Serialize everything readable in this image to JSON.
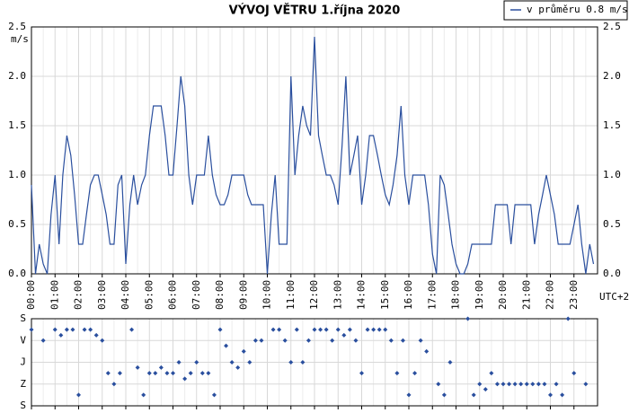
{
  "chart_data": [
    {
      "type": "line",
      "title": "VÝVOJ VĚTRU  1.října 2020",
      "y_label": "m/s",
      "x_note": "UTC+2",
      "legend": "top-right",
      "grid": true,
      "xlim": [
        0,
        24
      ],
      "xticks": [
        {
          "value": 0,
          "label": "00:00"
        },
        {
          "value": 1,
          "label": "01:00"
        },
        {
          "value": 2,
          "label": "02:00"
        },
        {
          "value": 3,
          "label": "03:00"
        },
        {
          "value": 4,
          "label": "04:00"
        },
        {
          "value": 5,
          "label": "05:00"
        },
        {
          "value": 6,
          "label": "06:00"
        },
        {
          "value": 7,
          "label": "07:00"
        },
        {
          "value": 8,
          "label": "08:00"
        },
        {
          "value": 9,
          "label": "09:00"
        },
        {
          "value": 10,
          "label": "10:00"
        },
        {
          "value": 11,
          "label": "11:00"
        },
        {
          "value": 12,
          "label": "12:00"
        },
        {
          "value": 13,
          "label": "13:00"
        },
        {
          "value": 14,
          "label": "14:00"
        },
        {
          "value": 15,
          "label": "15:00"
        },
        {
          "value": 16,
          "label": "16:00"
        },
        {
          "value": 17,
          "label": "17:00"
        },
        {
          "value": 18,
          "label": "18:00"
        },
        {
          "value": 19,
          "label": "19:00"
        },
        {
          "value": 20,
          "label": "20:00"
        },
        {
          "value": 21,
          "label": "21:00"
        },
        {
          "value": 22,
          "label": "22:00"
        },
        {
          "value": 23,
          "label": "23:00"
        }
      ],
      "ylim": [
        0,
        2.5
      ],
      "yticks": [
        {
          "value": 0,
          "label": "0.0"
        },
        0.5,
        {
          "value": 1,
          "label": "1.0"
        },
        1.5,
        {
          "value": 2,
          "label": "2.0"
        },
        2.5
      ],
      "x": [
        0,
        0.17,
        0.33,
        0.5,
        0.67,
        0.83,
        1,
        1.17,
        1.33,
        1.5,
        1.67,
        1.83,
        2,
        2.17,
        2.33,
        2.5,
        2.67,
        2.83,
        3,
        3.17,
        3.33,
        3.5,
        3.67,
        3.83,
        4,
        4.17,
        4.33,
        4.5,
        4.67,
        4.83,
        5,
        5.17,
        5.33,
        5.5,
        5.67,
        5.83,
        6,
        6.17,
        6.33,
        6.5,
        6.67,
        6.83,
        7,
        7.17,
        7.33,
        7.5,
        7.67,
        7.83,
        8,
        8.17,
        8.33,
        8.5,
        8.67,
        8.83,
        9,
        9.17,
        9.33,
        9.5,
        9.67,
        9.83,
        10,
        10.17,
        10.33,
        10.5,
        10.67,
        10.83,
        11,
        11.17,
        11.33,
        11.5,
        11.67,
        11.83,
        12,
        12.17,
        12.33,
        12.5,
        12.67,
        12.83,
        13,
        13.17,
        13.33,
        13.5,
        13.67,
        13.83,
        14,
        14.17,
        14.33,
        14.5,
        14.67,
        14.83,
        15,
        15.17,
        15.33,
        15.5,
        15.67,
        15.83,
        16,
        16.17,
        16.33,
        16.5,
        16.67,
        16.83,
        17,
        17.17,
        17.33,
        17.5,
        17.67,
        17.83,
        18,
        18.17,
        18.33,
        18.5,
        18.67,
        18.83,
        19,
        19.17,
        19.33,
        19.5,
        19.67,
        19.83,
        20,
        20.17,
        20.33,
        20.5,
        20.67,
        20.83,
        21,
        21.17,
        21.33,
        21.5,
        21.67,
        21.83,
        22,
        22.17,
        22.33,
        22.5,
        22.67,
        22.83,
        23,
        23.17,
        23.33,
        23.5,
        23.67,
        23.83
      ],
      "series": [
        {
          "name": "v průměru 0.8 m/s",
          "color": "#2a4f9e",
          "values": [
            0.9,
            0,
            0.3,
            0.1,
            0,
            0.6,
            1.0,
            0.3,
            1.0,
            1.4,
            1.2,
            0.8,
            0.3,
            0.3,
            0.6,
            0.9,
            1.0,
            1.0,
            0.8,
            0.6,
            0.3,
            0.3,
            0.9,
            1.0,
            0.1,
            0.7,
            1.0,
            0.7,
            0.9,
            1.0,
            1.4,
            1.7,
            1.7,
            1.7,
            1.4,
            1.0,
            1.0,
            1.5,
            2.0,
            1.7,
            1.0,
            0.7,
            1.0,
            1.0,
            1.0,
            1.4,
            1.0,
            0.8,
            0.7,
            0.7,
            0.8,
            1.0,
            1.0,
            1.0,
            1.0,
            0.8,
            0.7,
            0.7,
            0.7,
            0.7,
            0,
            0.6,
            1.0,
            0.3,
            0.3,
            0.3,
            2.0,
            1.0,
            1.4,
            1.7,
            1.5,
            1.4,
            2.4,
            1.4,
            1.2,
            1.0,
            1.0,
            0.9,
            0.7,
            1.3,
            2.0,
            1.0,
            1.2,
            1.4,
            0.7,
            1.0,
            1.4,
            1.4,
            1.2,
            1.0,
            0.8,
            0.7,
            0.9,
            1.2,
            1.7,
            1.0,
            0.7,
            1.0,
            1.0,
            1.0,
            1.0,
            0.7,
            0.2,
            0,
            1.0,
            0.9,
            0.6,
            0.3,
            0.1,
            0,
            0,
            0.1,
            0.3,
            0.3,
            0.3,
            0.3,
            0.3,
            0.3,
            0.7,
            0.7,
            0.7,
            0.7,
            0.3,
            0.7,
            0.7,
            0.7,
            0.7,
            0.7,
            0.3,
            0.6,
            0.8,
            1.0,
            0.8,
            0.6,
            0.3,
            0.3,
            0.3,
            0.3,
            0.5,
            0.7,
            0.3,
            0,
            0.3,
            0.1
          ]
        }
      ]
    },
    {
      "type": "scatter",
      "grid": true,
      "y_inverted": true,
      "color": "#2a4f9e",
      "xlim": [
        0,
        24
      ],
      "ylim": [
        0,
        360
      ],
      "yticks": [
        {
          "value": 0,
          "label": "S"
        },
        {
          "value": 90,
          "label": "V"
        },
        {
          "value": 180,
          "label": "J"
        },
        {
          "value": 270,
          "label": "Z"
        },
        {
          "value": 360,
          "label": "S"
        }
      ],
      "x": [
        0,
        0.5,
        1,
        1.25,
        1.5,
        1.75,
        2,
        2.25,
        2.5,
        2.75,
        3,
        3.25,
        3.5,
        3.75,
        4.25,
        4.5,
        4.75,
        5,
        5.25,
        5.5,
        5.75,
        6,
        6.25,
        6.5,
        6.75,
        7,
        7.25,
        7.5,
        7.75,
        8,
        8.25,
        8.5,
        8.75,
        9,
        9.25,
        9.5,
        9.75,
        10.25,
        10.5,
        10.75,
        11,
        11.25,
        11.5,
        11.75,
        12,
        12.25,
        12.5,
        12.75,
        13,
        13.25,
        13.5,
        13.75,
        14,
        14.25,
        14.5,
        14.75,
        15,
        15.25,
        15.5,
        15.75,
        16,
        16.25,
        16.5,
        16.75,
        17.25,
        17.5,
        17.75,
        18.5,
        18.75,
        19,
        19.25,
        19.5,
        19.75,
        20,
        20.25,
        20.5,
        20.75,
        21,
        21.25,
        21.5,
        21.75,
        22,
        22.25,
        22.5,
        22.75,
        23,
        23.5
      ],
      "values": [
        45,
        90,
        45,
        68,
        45,
        45,
        315,
        45,
        45,
        68,
        90,
        225,
        270,
        225,
        45,
        202,
        315,
        225,
        225,
        202,
        225,
        225,
        180,
        248,
        225,
        180,
        225,
        225,
        315,
        45,
        112,
        180,
        202,
        135,
        180,
        90,
        90,
        45,
        45,
        90,
        180,
        45,
        180,
        90,
        45,
        45,
        45,
        90,
        45,
        68,
        45,
        90,
        225,
        45,
        45,
        45,
        45,
        90,
        225,
        90,
        315,
        225,
        90,
        135,
        270,
        315,
        180,
        0,
        315,
        270,
        292,
        225,
        270,
        270,
        270,
        270,
        270,
        270,
        270,
        270,
        270,
        315,
        270,
        315,
        0,
        225,
        270
      ]
    }
  ]
}
